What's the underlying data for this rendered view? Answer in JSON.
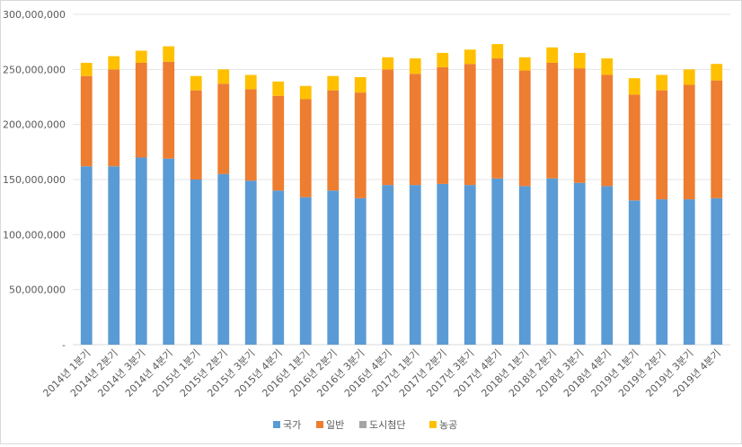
{
  "chart_data": {
    "type": "bar",
    "stacked": true,
    "title": "",
    "xlabel": "",
    "ylabel": "",
    "ylim": [
      0,
      300000000
    ],
    "yticks": [
      {
        "value": 0,
        "label": "-"
      },
      {
        "value": 50000000,
        "label": "50,000,000"
      },
      {
        "value": 100000000,
        "label": "100,000,000"
      },
      {
        "value": 150000000,
        "label": "150,000,000"
      },
      {
        "value": 200000000,
        "label": "200,000,000"
      },
      {
        "value": 250000000,
        "label": "250,000,000"
      },
      {
        "value": 300000000,
        "label": "300,000,000"
      }
    ],
    "grid": true,
    "legend_position": "bottom",
    "categories": [
      "2014년 1분기",
      "2014년 2분기",
      "2014년 3분기",
      "2014년 4분기",
      "2015년 1분기",
      "2015년 2분기",
      "2015년 3분기",
      "2015년 4분기",
      "2016년 1분기",
      "2016년 2분기",
      "2016년 3분기",
      "2016년 4분기",
      "2017년 1분기",
      "2017년 2분기",
      "2017년 3분기",
      "2017년 4분기",
      "2018년 1분기",
      "2018년 2분기",
      "2018년 3분기",
      "2018년 4분기",
      "2019년 1분기",
      "2019년 2분기",
      "2019년 3분기",
      "2019년 4분기"
    ],
    "series": [
      {
        "name": "국가",
        "color": "#5b9bd5",
        "values": [
          162000000,
          162000000,
          170000000,
          169000000,
          150000000,
          155000000,
          149000000,
          140000000,
          134000000,
          140000000,
          133000000,
          145000000,
          145000000,
          146000000,
          145000000,
          151000000,
          144000000,
          151000000,
          147000000,
          144000000,
          131000000,
          132000000,
          132000000,
          133000000
        ]
      },
      {
        "name": "일반",
        "color": "#ed7d31",
        "values": [
          82000000,
          88000000,
          86000000,
          88000000,
          81000000,
          82000000,
          83000000,
          86000000,
          89000000,
          91000000,
          96000000,
          105000000,
          101000000,
          106000000,
          110000000,
          109000000,
          105000000,
          105000000,
          104000000,
          101000000,
          96000000,
          99000000,
          104000000,
          107000000
        ]
      },
      {
        "name": "도시첨단",
        "color": "#a5a5a5",
        "values": [
          0,
          0,
          0,
          0,
          0,
          0,
          0,
          0,
          0,
          0,
          0,
          0,
          0,
          0,
          0,
          0,
          0,
          0,
          0,
          0,
          0,
          0,
          0,
          0
        ]
      },
      {
        "name": "농공",
        "color": "#ffc000",
        "values": [
          12000000,
          12000000,
          11000000,
          14000000,
          13000000,
          13000000,
          13000000,
          13000000,
          12000000,
          13000000,
          14000000,
          11000000,
          14000000,
          13000000,
          13000000,
          13000000,
          12000000,
          14000000,
          14000000,
          15000000,
          15000000,
          14000000,
          14000000,
          15000000
        ]
      }
    ]
  }
}
